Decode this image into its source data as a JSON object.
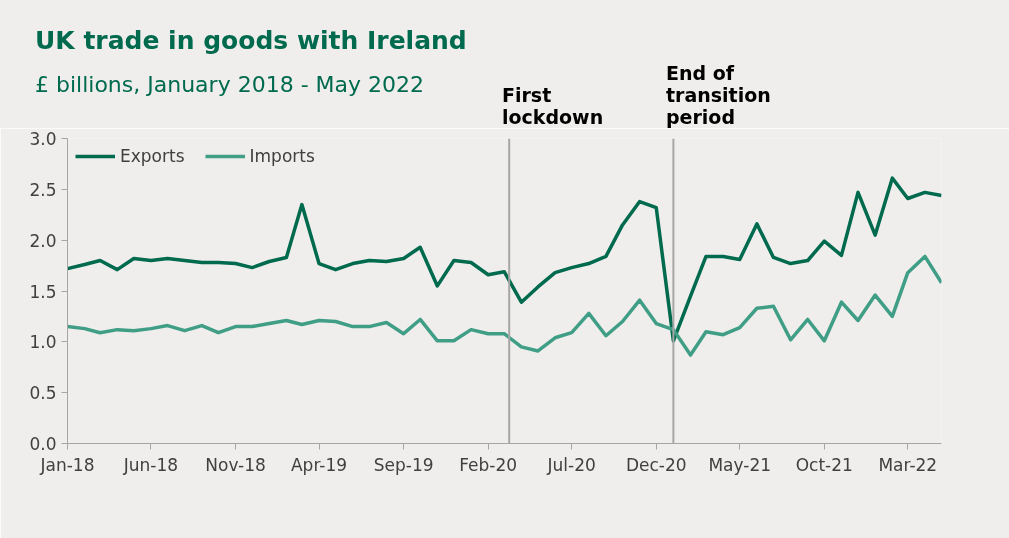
{
  "chart_data": {
    "type": "line",
    "title": "UK trade in goods with Ireland",
    "subtitle": "£ billions, January 2018 - May 2022",
    "x": [
      "2018-01",
      "2018-02",
      "2018-03",
      "2018-04",
      "2018-05",
      "2018-06",
      "2018-07",
      "2018-08",
      "2018-09",
      "2018-10",
      "2018-11",
      "2018-12",
      "2019-01",
      "2019-02",
      "2019-03",
      "2019-04",
      "2019-05",
      "2019-06",
      "2019-07",
      "2019-08",
      "2019-09",
      "2019-10",
      "2019-11",
      "2019-12",
      "2020-01",
      "2020-02",
      "2020-03",
      "2020-04",
      "2020-05",
      "2020-06",
      "2020-07",
      "2020-08",
      "2020-09",
      "2020-10",
      "2020-11",
      "2020-12",
      "2021-01",
      "2021-02",
      "2021-03",
      "2021-04",
      "2021-05",
      "2021-06",
      "2021-07",
      "2021-08",
      "2021-09",
      "2021-10",
      "2021-11",
      "2021-12",
      "2022-01",
      "2022-02",
      "2022-03",
      "2022-04",
      "2022-05"
    ],
    "series": [
      {
        "name": "Exports",
        "color": "#006a4e",
        "values": [
          1.72,
          1.76,
          1.8,
          1.71,
          1.82,
          1.8,
          1.82,
          1.8,
          1.78,
          1.78,
          1.77,
          1.73,
          1.79,
          1.83,
          2.35,
          1.77,
          1.71,
          1.77,
          1.8,
          1.79,
          1.82,
          1.93,
          1.55,
          1.8,
          1.78,
          1.66,
          1.69,
          1.39,
          1.54,
          1.68,
          1.73,
          1.77,
          1.84,
          2.15,
          2.38,
          2.32,
          1.01,
          1.45,
          1.84,
          1.84,
          1.81,
          2.16,
          1.83,
          1.77,
          1.8,
          1.99,
          1.85,
          2.47,
          2.05,
          2.61,
          2.41,
          2.47,
          2.44
        ]
      },
      {
        "name": "Imports",
        "color": "#3f9e85",
        "values": [
          1.15,
          1.13,
          1.09,
          1.12,
          1.11,
          1.13,
          1.16,
          1.11,
          1.16,
          1.09,
          1.15,
          1.15,
          1.18,
          1.21,
          1.17,
          1.21,
          1.2,
          1.15,
          1.15,
          1.19,
          1.08,
          1.22,
          1.01,
          1.01,
          1.12,
          1.08,
          1.08,
          0.95,
          0.91,
          1.04,
          1.09,
          1.28,
          1.06,
          1.2,
          1.41,
          1.18,
          1.12,
          0.87,
          1.1,
          1.07,
          1.14,
          1.33,
          1.35,
          1.02,
          1.22,
          1.01,
          1.39,
          1.21,
          1.46,
          1.25,
          1.68,
          1.84,
          1.58
        ]
      }
    ],
    "xlim": [
      "2018-01",
      "2022-05"
    ],
    "xticks": [
      {
        "value": "2018-01",
        "label": "Jan-18"
      },
      {
        "value": "2018-06",
        "label": "Jun-18"
      },
      {
        "value": "2018-11",
        "label": "Nov-18"
      },
      {
        "value": "2019-04",
        "label": "Apr-19"
      },
      {
        "value": "2019-09",
        "label": "Sep-19"
      },
      {
        "value": "2020-02",
        "label": "Feb-20"
      },
      {
        "value": "2020-07",
        "label": "Jul-20"
      },
      {
        "value": "2020-12",
        "label": "Dec-20"
      },
      {
        "value": "2021-05",
        "label": "May-21"
      },
      {
        "value": "2021-10",
        "label": "Oct-21"
      },
      {
        "value": "2022-03",
        "label": "Mar-22"
      }
    ],
    "ylim": [
      0,
      3
    ],
    "yticks": [
      {
        "value": 0,
        "label": "0.0"
      },
      {
        "value": 0.5,
        "label": "0.5"
      },
      {
        "value": 1,
        "label": "1.0"
      },
      {
        "value": 1.5,
        "label": "1.5"
      },
      {
        "value": 2,
        "label": "2.0"
      },
      {
        "value": 2.5,
        "label": "2.5"
      },
      {
        "value": 3,
        "label": "3.0"
      }
    ],
    "ref_lines": [
      {
        "axis": "x",
        "value": "2020-03-10",
        "label": "First lockdown",
        "color": "#a6a6a6"
      },
      {
        "axis": "x",
        "value": "2021-01",
        "label": "End of transition period",
        "color": "#a6a6a6"
      }
    ],
    "legend": "top left",
    "grid": false,
    "line_style": "solid",
    "marker": "none"
  }
}
